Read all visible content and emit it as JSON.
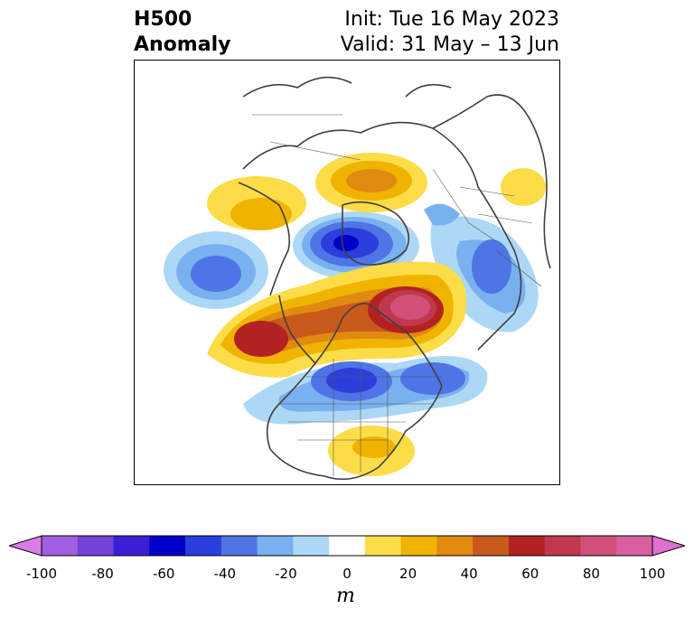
{
  "title": {
    "left_line1": "H500",
    "left_line2": "Anomaly",
    "right_line1": "Init: Tue 16 May 2023",
    "right_line2": "Valid: 31 May – 13 Jun"
  },
  "map": {
    "projection": "north-polar view",
    "region": "North America and Arctic",
    "anomaly_features": [
      {
        "sign": "positive",
        "level_m": 80,
        "location": "east of Greenland / Labrador Sea region"
      },
      {
        "sign": "positive",
        "level_m": 60,
        "location": "eastern North Pacific / Gulf of Alaska"
      },
      {
        "sign": "positive",
        "level_m": 40,
        "location": "northern Siberia coast"
      },
      {
        "sign": "positive",
        "level_m": 20,
        "location": "northern Europe / Scandinavia"
      },
      {
        "sign": "positive",
        "level_m": 20,
        "location": "southeastern United States"
      },
      {
        "sign": "negative",
        "level_m": -60,
        "location": "Arctic Ocean near Greenland north coast"
      },
      {
        "sign": "negative",
        "level_m": -50,
        "location": "eastern Canada / Great Lakes"
      },
      {
        "sign": "negative",
        "level_m": -40,
        "location": "western North Atlantic"
      },
      {
        "sign": "negative",
        "level_m": -40,
        "location": "Bering Sea / central Pacific"
      },
      {
        "sign": "negative",
        "level_m": -30,
        "location": "Kamchatka / northeast Asia"
      }
    ]
  },
  "colorbar": {
    "unit": "m",
    "extend": "both",
    "ticks": [
      "-100",
      "-80",
      "-60",
      "-40",
      "-20",
      "0",
      "20",
      "40",
      "60",
      "80",
      "100"
    ],
    "colors": [
      "#d97ee8",
      "#a05ee0",
      "#7043d9",
      "#3a1fd4",
      "#0000c8",
      "#2b3edb",
      "#4f74e6",
      "#79b0f0",
      "#add8f5",
      "#ffffff",
      "#fcdd48",
      "#f0b400",
      "#e08a10",
      "#c85a1c",
      "#b22222",
      "#c0384d",
      "#d0507a",
      "#d860a0",
      "#e070d0"
    ]
  }
}
